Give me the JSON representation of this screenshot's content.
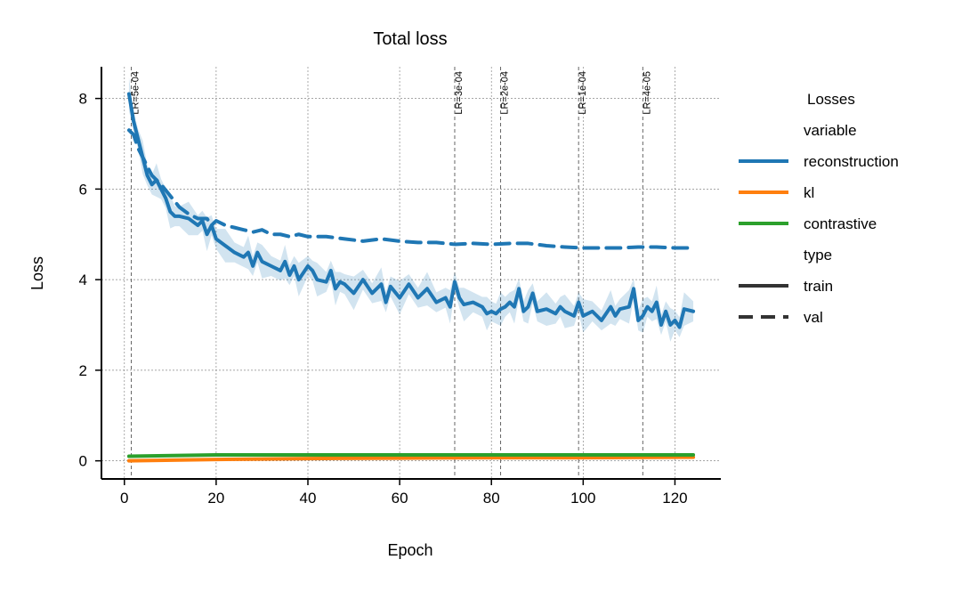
{
  "chart_data": {
    "type": "line",
    "title": "Total loss",
    "xlabel": "Epoch",
    "ylabel": "Loss",
    "xlim": [
      -5,
      130
    ],
    "ylim": [
      -0.4,
      8.7
    ],
    "x_ticks": [
      0,
      20,
      40,
      60,
      80,
      100,
      120
    ],
    "y_ticks": [
      0,
      2,
      4,
      6,
      8
    ],
    "grid": true,
    "legend": {
      "placement": "right",
      "title": "Losses",
      "hue_title": "variable",
      "style_title": "type",
      "hue_entries": [
        {
          "name": "reconstruction",
          "color": "#1f77b4"
        },
        {
          "name": "kl",
          "color": "#ff7f0e"
        },
        {
          "name": "contrastive",
          "color": "#2ca02c"
        }
      ],
      "style_entries": [
        {
          "name": "train",
          "dash": "solid"
        },
        {
          "name": "val",
          "dash": "dashed"
        }
      ]
    },
    "lr_annotations": [
      {
        "epoch": 1.5,
        "label": "LR=5e-04"
      },
      {
        "epoch": 72,
        "label": "LR=3e-04"
      },
      {
        "epoch": 82,
        "label": "LR=2e-04"
      },
      {
        "epoch": 99,
        "label": "LR=1e-04"
      },
      {
        "epoch": 113,
        "label": "LR=4e-05"
      }
    ],
    "series": [
      {
        "name": "reconstruction",
        "type": "train",
        "color": "#1f77b4",
        "dash": "solid",
        "points": [
          [
            1,
            8.1
          ],
          [
            2,
            7.5
          ],
          [
            3,
            7.1
          ],
          [
            4,
            6.7
          ],
          [
            5,
            6.3
          ],
          [
            6,
            6.1
          ],
          [
            7,
            6.2
          ],
          [
            8,
            6.0
          ],
          [
            9,
            5.8
          ],
          [
            10,
            5.5
          ],
          [
            11,
            5.4
          ],
          [
            12,
            5.4
          ],
          [
            14,
            5.35
          ],
          [
            16,
            5.2
          ],
          [
            17,
            5.3
          ],
          [
            18,
            5.0
          ],
          [
            19,
            5.2
          ],
          [
            20,
            4.9
          ],
          [
            22,
            4.75
          ],
          [
            24,
            4.6
          ],
          [
            26,
            4.5
          ],
          [
            27,
            4.6
          ],
          [
            28,
            4.3
          ],
          [
            29,
            4.6
          ],
          [
            30,
            4.4
          ],
          [
            32,
            4.3
          ],
          [
            34,
            4.2
          ],
          [
            35,
            4.4
          ],
          [
            36,
            4.1
          ],
          [
            37,
            4.3
          ],
          [
            38,
            4.0
          ],
          [
            40,
            4.3
          ],
          [
            41,
            4.2
          ],
          [
            42,
            4.0
          ],
          [
            44,
            3.95
          ],
          [
            45,
            4.2
          ],
          [
            46,
            3.8
          ],
          [
            47,
            3.95
          ],
          [
            48,
            3.9
          ],
          [
            50,
            3.7
          ],
          [
            52,
            4.0
          ],
          [
            54,
            3.7
          ],
          [
            56,
            3.9
          ],
          [
            57,
            3.5
          ],
          [
            58,
            3.85
          ],
          [
            60,
            3.6
          ],
          [
            62,
            3.9
          ],
          [
            64,
            3.6
          ],
          [
            66,
            3.8
          ],
          [
            68,
            3.5
          ],
          [
            70,
            3.6
          ],
          [
            71,
            3.4
          ],
          [
            72,
            3.95
          ],
          [
            73,
            3.6
          ],
          [
            74,
            3.45
          ],
          [
            76,
            3.5
          ],
          [
            78,
            3.4
          ],
          [
            79,
            3.25
          ],
          [
            80,
            3.3
          ],
          [
            81,
            3.25
          ],
          [
            82,
            3.35
          ],
          [
            83,
            3.4
          ],
          [
            84,
            3.5
          ],
          [
            85,
            3.4
          ],
          [
            86,
            3.8
          ],
          [
            87,
            3.3
          ],
          [
            88,
            3.4
          ],
          [
            89,
            3.7
          ],
          [
            90,
            3.3
          ],
          [
            92,
            3.35
          ],
          [
            94,
            3.25
          ],
          [
            95,
            3.4
          ],
          [
            96,
            3.3
          ],
          [
            98,
            3.2
          ],
          [
            99,
            3.5
          ],
          [
            100,
            3.2
          ],
          [
            102,
            3.3
          ],
          [
            104,
            3.1
          ],
          [
            106,
            3.4
          ],
          [
            107,
            3.2
          ],
          [
            108,
            3.35
          ],
          [
            110,
            3.4
          ],
          [
            111,
            3.8
          ],
          [
            112,
            3.1
          ],
          [
            113,
            3.2
          ],
          [
            114,
            3.4
          ],
          [
            115,
            3.3
          ],
          [
            116,
            3.5
          ],
          [
            117,
            3.0
          ],
          [
            118,
            3.3
          ],
          [
            119,
            3.0
          ],
          [
            120,
            3.1
          ],
          [
            121,
            2.95
          ],
          [
            122,
            3.35
          ],
          [
            124,
            3.3
          ]
        ]
      },
      {
        "name": "reconstruction",
        "type": "val",
        "color": "#1f77b4",
        "dash": "dashed",
        "points": [
          [
            1,
            7.3
          ],
          [
            2,
            7.2
          ],
          [
            3,
            6.9
          ],
          [
            4,
            6.7
          ],
          [
            5,
            6.5
          ],
          [
            6,
            6.3
          ],
          [
            8,
            6.1
          ],
          [
            10,
            5.85
          ],
          [
            12,
            5.6
          ],
          [
            14,
            5.45
          ],
          [
            16,
            5.35
          ],
          [
            18,
            5.35
          ],
          [
            19,
            5.2
          ],
          [
            20,
            5.3
          ],
          [
            22,
            5.2
          ],
          [
            24,
            5.15
          ],
          [
            26,
            5.1
          ],
          [
            28,
            5.05
          ],
          [
            30,
            5.1
          ],
          [
            32,
            5.0
          ],
          [
            34,
            5.0
          ],
          [
            36,
            4.95
          ],
          [
            38,
            5.0
          ],
          [
            40,
            4.95
          ],
          [
            44,
            4.95
          ],
          [
            48,
            4.9
          ],
          [
            52,
            4.85
          ],
          [
            56,
            4.9
          ],
          [
            60,
            4.85
          ],
          [
            64,
            4.82
          ],
          [
            68,
            4.82
          ],
          [
            72,
            4.78
          ],
          [
            76,
            4.8
          ],
          [
            80,
            4.78
          ],
          [
            84,
            4.8
          ],
          [
            88,
            4.8
          ],
          [
            92,
            4.75
          ],
          [
            96,
            4.72
          ],
          [
            100,
            4.7
          ],
          [
            104,
            4.7
          ],
          [
            108,
            4.7
          ],
          [
            112,
            4.72
          ],
          [
            116,
            4.72
          ],
          [
            120,
            4.7
          ],
          [
            124,
            4.7
          ]
        ]
      },
      {
        "name": "kl",
        "type": "train",
        "color": "#ff7f0e",
        "dash": "solid",
        "points": [
          [
            1,
            0.0
          ],
          [
            20,
            0.03
          ],
          [
            40,
            0.05
          ],
          [
            60,
            0.06
          ],
          [
            80,
            0.07
          ],
          [
            100,
            0.07
          ],
          [
            124,
            0.08
          ]
        ]
      },
      {
        "name": "contrastive",
        "type": "train",
        "color": "#2ca02c",
        "dash": "solid",
        "points": [
          [
            1,
            0.1
          ],
          [
            20,
            0.13
          ],
          [
            40,
            0.13
          ],
          [
            60,
            0.13
          ],
          [
            80,
            0.13
          ],
          [
            100,
            0.13
          ],
          [
            124,
            0.13
          ]
        ]
      }
    ]
  }
}
